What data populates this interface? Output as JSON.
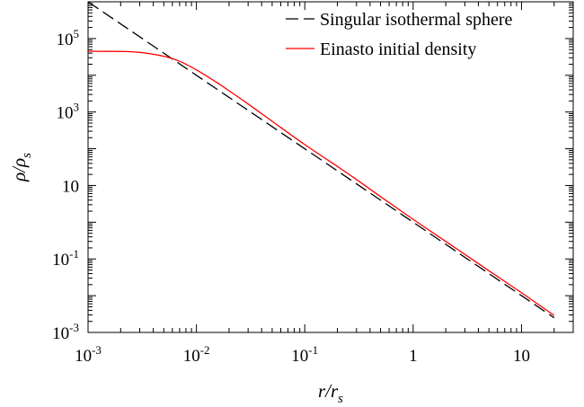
{
  "chart_data": {
    "type": "line",
    "xscale": "log",
    "yscale": "log",
    "xlim": [
      0.001,
      30
    ],
    "ylim": [
      0.001,
      1000000
    ],
    "xlabel": "r/r_s",
    "ylabel": "ρ/ρ_s",
    "grid": false,
    "legend_position": "top-right",
    "x_ticks": [
      {
        "value": 0.001,
        "base": "10",
        "exp": "-3"
      },
      {
        "value": 0.01,
        "base": "10",
        "exp": "-2"
      },
      {
        "value": 0.1,
        "base": "10",
        "exp": "-1"
      },
      {
        "value": 1,
        "base": "1",
        "exp": ""
      },
      {
        "value": 10,
        "base": "10",
        "exp": ""
      }
    ],
    "y_ticks": [
      {
        "value": 0.001,
        "base": "10",
        "exp": "-3"
      },
      {
        "value": 0.1,
        "base": "10",
        "exp": "-1"
      },
      {
        "value": 10,
        "base": "10",
        "exp": ""
      },
      {
        "value": 1000,
        "base": "10",
        "exp": "3"
      },
      {
        "value": 100000,
        "base": "10",
        "exp": "5"
      }
    ],
    "series": [
      {
        "name": "Singular isothermal sphere",
        "color": "#000000",
        "dash": "dashed",
        "x": [
          0.001,
          0.01,
          0.1,
          1,
          10,
          20
        ],
        "y": [
          1000000,
          10000,
          100,
          1,
          0.01,
          0.0025
        ]
      },
      {
        "name": "Einasto initial density",
        "color": "#ff0000",
        "dash": "solid",
        "x": [
          0.001,
          0.002,
          0.003,
          0.005,
          0.007,
          0.01,
          0.015,
          0.02,
          0.03,
          0.05,
          0.1,
          0.2,
          0.3,
          0.5,
          1,
          2,
          5,
          10,
          20
        ],
        "y": [
          45000,
          44500,
          42000,
          33000,
          24000,
          14000,
          6700,
          3800,
          1650,
          560,
          130,
          33,
          14.5,
          5,
          1.2,
          0.3,
          0.048,
          0.012,
          0.0029
        ]
      }
    ]
  }
}
